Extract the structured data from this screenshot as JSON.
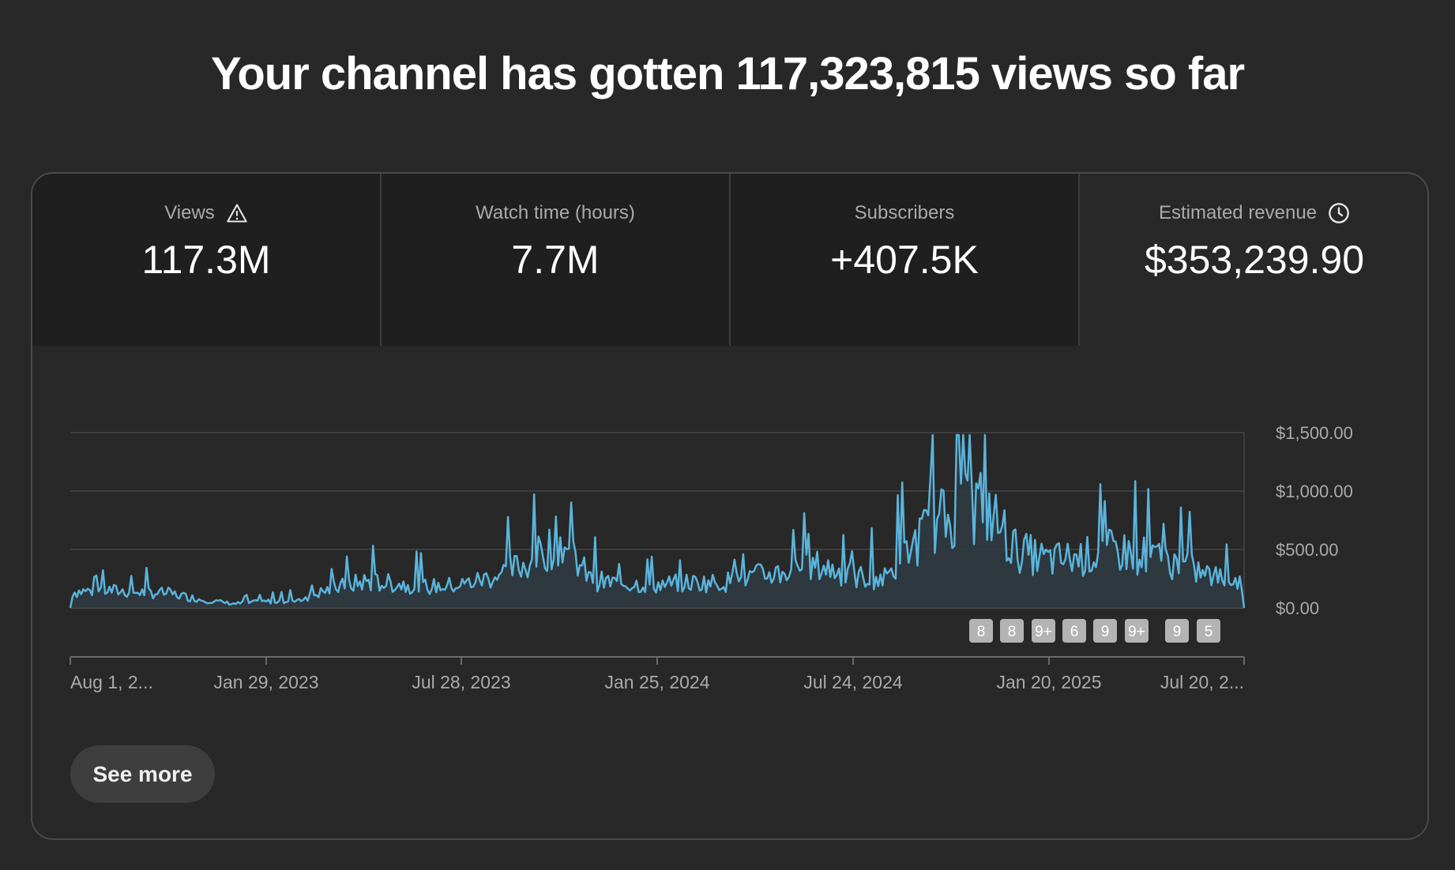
{
  "headline": "Your channel has gotten 117,323,815 views so far",
  "tabs": [
    {
      "label": "Views",
      "value": "117.3M",
      "icon": "warning-icon"
    },
    {
      "label": "Watch time (hours)",
      "value": "7.7M"
    },
    {
      "label": "Subscribers",
      "value": "+407.5K"
    },
    {
      "label": "Estimated revenue",
      "value": "$353,239.90",
      "icon": "clock-icon",
      "selected": true
    }
  ],
  "see_more": "See more",
  "colors": {
    "line": "#5ab4dc",
    "area": "#2f3a40",
    "background": "#282828",
    "tab_dark": "#1f1f1f",
    "grid": "#454545",
    "badge": "#b3b3b3"
  },
  "chart_data": {
    "type": "area",
    "title": "",
    "xlabel": "",
    "ylabel": "",
    "ylim": [
      0,
      1500
    ],
    "y_ticks": [
      "$0.00",
      "$500.00",
      "$1,000.00",
      "$1,500.00"
    ],
    "x_ticks": [
      "Aug 1, 2...",
      "Jan 29, 2023",
      "Jul 28, 2023",
      "Jan 25, 2024",
      "Jul 24, 2024",
      "Jan 20, 2025",
      "Jul 20, 2..."
    ],
    "grid": true,
    "x": [
      "2022-08-01",
      "2022-09-01",
      "2022-10-01",
      "2022-11-01",
      "2022-12-01",
      "2023-01-01",
      "2023-02-01",
      "2023-03-01",
      "2023-04-01",
      "2023-05-01",
      "2023-06-01",
      "2023-07-01",
      "2023-08-01",
      "2023-09-01",
      "2023-10-01",
      "2023-11-01",
      "2023-12-01",
      "2024-01-01",
      "2024-02-01",
      "2024-03-01",
      "2024-04-01",
      "2024-05-01",
      "2024-06-01",
      "2024-07-01",
      "2024-08-01",
      "2024-09-01",
      "2024-10-01",
      "2024-11-01",
      "2024-12-01",
      "2025-01-01",
      "2025-02-01",
      "2025-03-01",
      "2025-04-01",
      "2025-05-01",
      "2025-06-01",
      "2025-07-01",
      "2025-08-01"
    ],
    "series": [
      {
        "values": [
          150,
          170,
          150,
          140,
          80,
          40,
          60,
          80,
          180,
          250,
          230,
          200,
          220,
          300,
          420,
          650,
          260,
          230,
          220,
          240,
          240,
          300,
          350,
          400,
          300,
          280,
          650,
          900,
          1000,
          550,
          450,
          480,
          550,
          500,
          420,
          300,
          250
        ]
      }
    ],
    "annotations": [
      "8",
      "8",
      "9+",
      "6",
      "9",
      "9+",
      "9",
      "5"
    ]
  }
}
